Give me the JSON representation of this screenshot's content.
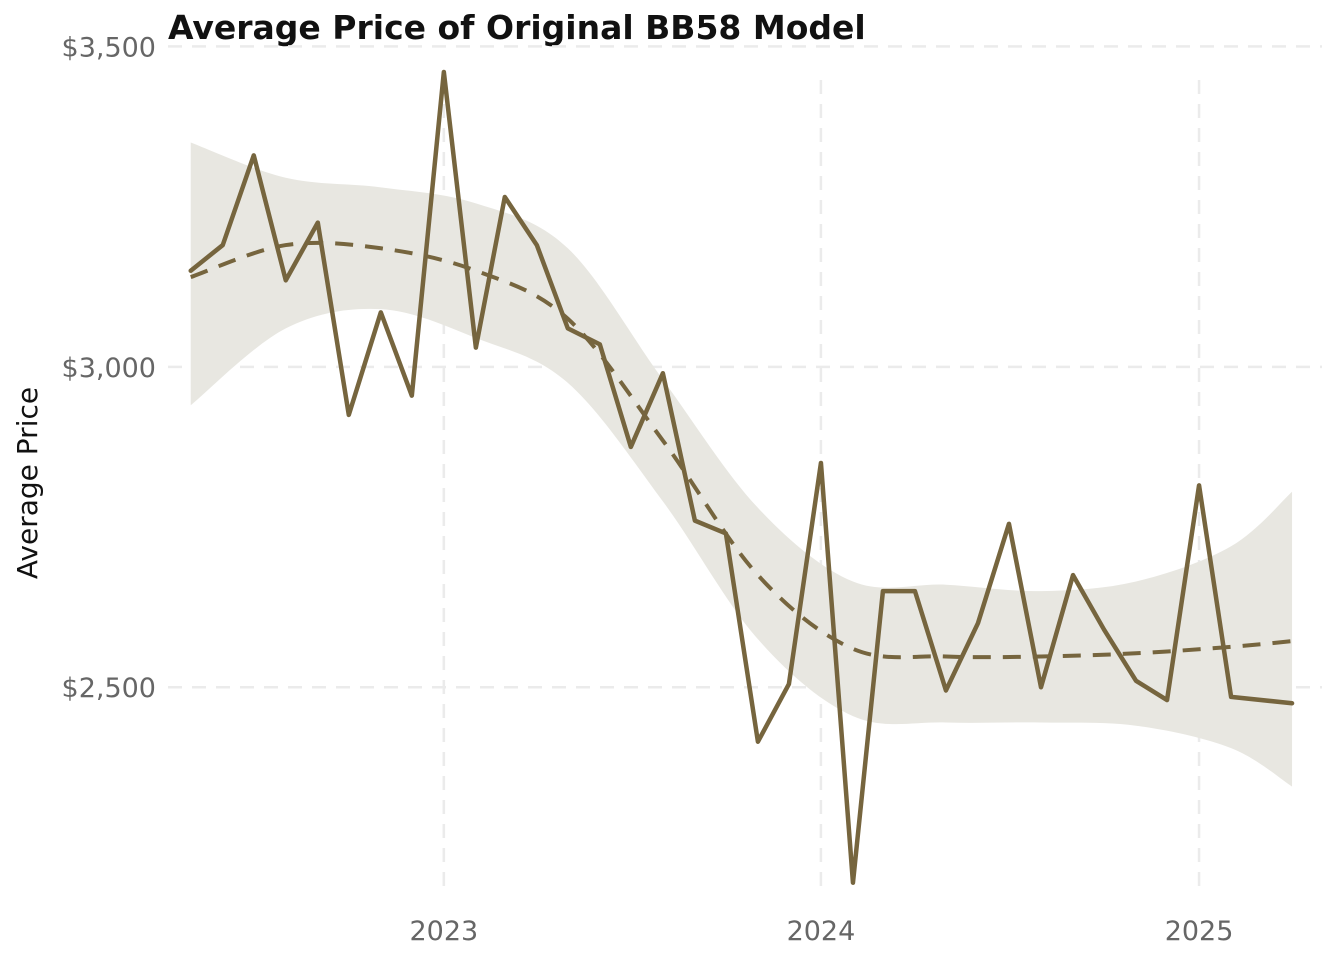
{
  "chart_data": {
    "type": "line",
    "title": "Average Price of Original BB58 Model",
    "xlabel": "",
    "ylabel": "Average Price",
    "x_ticks": [
      {
        "date": "2023-01-01",
        "label": "2023"
      },
      {
        "date": "2024-01-01",
        "label": "2024"
      },
      {
        "date": "2025-01-01",
        "label": "2025"
      }
    ],
    "y_ticks": [
      {
        "value": 2500,
        "label": "$2,500"
      },
      {
        "value": 3000,
        "label": "$3,000"
      },
      {
        "value": 3500,
        "label": "$3,500"
      }
    ],
    "xlim": [
      "2022-04-09",
      "2025-04-30"
    ],
    "ylim": [
      2168,
      3510
    ],
    "grid": true,
    "legend": "none",
    "colors": {
      "line": "#76653e",
      "band": "#e8e7e1",
      "grid": "#ebebeb"
    },
    "series": [
      {
        "role": "observed",
        "x": [
          "2022-05-01",
          "2022-06-01",
          "2022-07-01",
          "2022-08-01",
          "2022-09-01",
          "2022-10-01",
          "2022-11-01",
          "2022-12-01",
          "2023-01-01",
          "2023-02-01",
          "2023-03-01",
          "2023-04-01",
          "2023-05-01",
          "2023-06-01",
          "2023-07-01",
          "2023-08-01",
          "2023-09-01",
          "2023-10-01",
          "2023-11-01",
          "2023-12-01",
          "2024-01-01",
          "2024-02-01",
          "2024-03-01",
          "2024-04-01",
          "2024-05-01",
          "2024-06-01",
          "2024-07-01",
          "2024-08-01",
          "2024-09-01",
          "2024-10-01",
          "2024-11-01",
          "2024-12-01",
          "2025-01-01",
          "2025-02-01",
          "2025-04-01"
        ],
        "y": [
          3150,
          3190,
          3330,
          3135,
          3225,
          2925,
          3085,
          2955,
          3460,
          3030,
          3265,
          3190,
          3060,
          3035,
          2875,
          2990,
          2760,
          2740,
          2415,
          2505,
          2850,
          2195,
          2650,
          2650,
          2495,
          2600,
          2755,
          2500,
          2675,
          2590,
          2510,
          2480,
          2815,
          2485,
          2475
        ]
      },
      {
        "role": "smoothed",
        "x": [
          "2022-05-01",
          "2022-08-01",
          "2022-11-01",
          "2023-02-01",
          "2023-05-01",
          "2023-08-01",
          "2023-11-01",
          "2024-02-01",
          "2024-05-01",
          "2024-08-01",
          "2024-11-01",
          "2025-02-01",
          "2025-04-01"
        ],
        "y": [
          3140,
          3190,
          3185,
          3150,
          3075,
          2885,
          2675,
          2560,
          2548,
          2548,
          2553,
          2563,
          2572
        ]
      }
    ],
    "confidence_band": {
      "x": [
        "2022-05-01",
        "2022-08-01",
        "2022-11-01",
        "2023-02-01",
        "2023-05-01",
        "2023-08-01",
        "2023-11-01",
        "2024-02-01",
        "2024-05-01",
        "2024-08-01",
        "2024-11-01",
        "2025-02-01",
        "2025-04-01"
      ],
      "lower": [
        2940,
        3060,
        3090,
        3045,
        2975,
        2790,
        2575,
        2455,
        2445,
        2445,
        2440,
        2405,
        2345
      ],
      "upper": [
        3350,
        3295,
        3280,
        3255,
        3185,
        2980,
        2780,
        2665,
        2660,
        2650,
        2665,
        2720,
        2805
      ]
    }
  }
}
